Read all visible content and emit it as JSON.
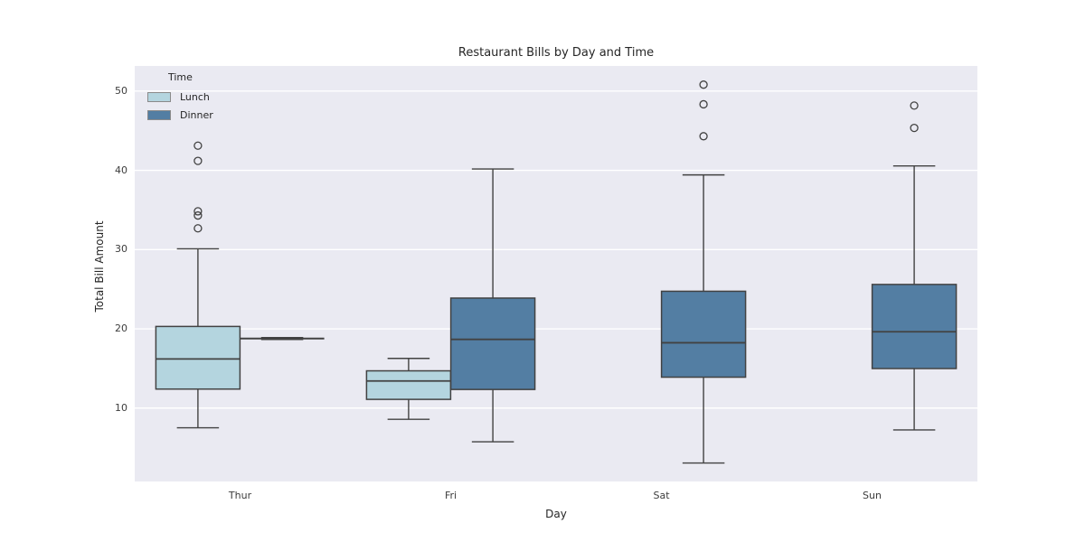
{
  "chart_data": {
    "type": "grouped_boxplot",
    "title": "Restaurant Bills by Day and Time",
    "xlabel": "Day",
    "ylabel": "Total Bill Amount",
    "categories": [
      "Thur",
      "Fri",
      "Sat",
      "Sun"
    ],
    "yticks": [
      10,
      20,
      30,
      40,
      50
    ],
    "ylim": [
      0.7,
      53.2
    ],
    "grid": true,
    "legend": {
      "title": "Time",
      "position": "upper left",
      "entries": [
        {
          "label": "Lunch",
          "color": "#b4d5df"
        },
        {
          "label": "Dinner",
          "color": "#537ea3"
        }
      ]
    },
    "colors": {
      "lunch_fill": "#b4d5df",
      "dinner_fill": "#537ea3",
      "box_edge": "#424242",
      "plot_background": "#eaeaf2",
      "gridline": "#ffffff",
      "figure_background": "#ffffff"
    },
    "series": [
      {
        "name": "Lunch",
        "color": "#b4d5df",
        "boxes": [
          {
            "category": "Thur",
            "whisker_low": 7.51,
            "q1": 12.4,
            "median": 16.2,
            "q3": 20.3,
            "whisker_high": 30.1,
            "outliers": [
              32.68,
              34.3,
              34.83,
              41.19,
              43.11
            ]
          },
          {
            "category": "Fri",
            "whisker_low": 8.58,
            "q1": 11.1,
            "median": 13.42,
            "q3": 14.7,
            "whisker_high": 16.27,
            "outliers": []
          },
          {
            "category": "Sat",
            "empty": true
          },
          {
            "category": "Sun",
            "empty": true
          }
        ]
      },
      {
        "name": "Dinner",
        "color": "#537ea3",
        "boxes": [
          {
            "category": "Thur",
            "single_value": true,
            "whisker_low": 18.78,
            "q1": 18.78,
            "median": 18.78,
            "q3": 18.78,
            "whisker_high": 18.78,
            "outliers": []
          },
          {
            "category": "Fri",
            "whisker_low": 5.75,
            "q1": 12.35,
            "median": 18.67,
            "q3": 23.88,
            "whisker_high": 40.17,
            "outliers": []
          },
          {
            "category": "Sat",
            "whisker_low": 3.07,
            "q1": 13.9,
            "median": 18.24,
            "q3": 24.74,
            "whisker_high": 39.42,
            "outliers": [
              44.3,
              48.33,
              50.81
            ]
          },
          {
            "category": "Sun",
            "whisker_low": 7.25,
            "q1": 14.99,
            "median": 19.63,
            "q3": 25.6,
            "whisker_high": 40.55,
            "outliers": [
              45.35,
              48.17
            ]
          }
        ]
      }
    ]
  }
}
